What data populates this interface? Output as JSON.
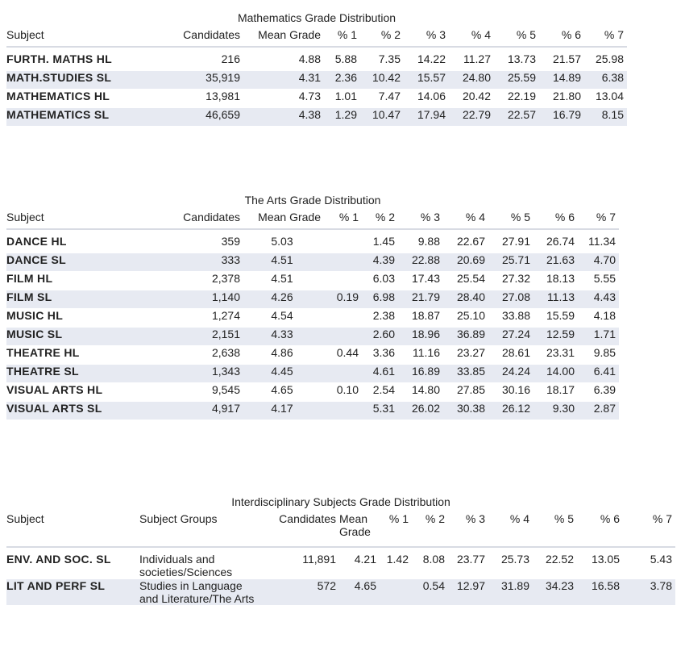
{
  "math": {
    "title": "Mathematics Grade Distribution",
    "headers": [
      "Subject",
      "Candidates",
      "Mean Grade",
      "% 1",
      "% 2",
      "% 3",
      "% 4",
      "% 5",
      "% 6",
      "% 7"
    ],
    "rows": [
      [
        "FURTH. MATHS HL",
        "216",
        "4.88",
        "5.88",
        "7.35",
        "14.22",
        "11.27",
        "13.73",
        "21.57",
        "25.98"
      ],
      [
        "MATH.STUDIES SL",
        "35,919",
        "4.31",
        "2.36",
        "10.42",
        "15.57",
        "24.80",
        "25.59",
        "14.89",
        "6.38"
      ],
      [
        "MATHEMATICS HL",
        "13,981",
        "4.73",
        "1.01",
        "7.47",
        "14.06",
        "20.42",
        "22.19",
        "21.80",
        "13.04"
      ],
      [
        "MATHEMATICS SL",
        "46,659",
        "4.38",
        "1.29",
        "10.47",
        "17.94",
        "22.79",
        "22.57",
        "16.79",
        "8.15"
      ]
    ]
  },
  "arts": {
    "title": "The Arts Grade Distribution",
    "headers": [
      "Subject",
      "Candidates",
      "Mean Grade",
      "% 1",
      "% 2",
      "% 3",
      "% 4",
      "% 5",
      "% 6",
      "% 7"
    ],
    "rows": [
      [
        "DANCE HL",
        "359",
        "5.03",
        "",
        "1.45",
        "9.88",
        "22.67",
        "27.91",
        "26.74",
        "11.34"
      ],
      [
        "DANCE SL",
        "333",
        "4.51",
        "",
        "4.39",
        "22.88",
        "20.69",
        "25.71",
        "21.63",
        "4.70"
      ],
      [
        "FILM HL",
        "2,378",
        "4.51",
        "",
        "6.03",
        "17.43",
        "25.54",
        "27.32",
        "18.13",
        "5.55"
      ],
      [
        "FILM SL",
        "1,140",
        "4.26",
        "0.19",
        "6.98",
        "21.79",
        "28.40",
        "27.08",
        "11.13",
        "4.43"
      ],
      [
        "MUSIC HL",
        "1,274",
        "4.54",
        "",
        "2.38",
        "18.87",
        "25.10",
        "33.88",
        "15.59",
        "4.18"
      ],
      [
        "MUSIC SL",
        "2,151",
        "4.33",
        "",
        "2.60",
        "18.96",
        "36.89",
        "27.24",
        "12.59",
        "1.71"
      ],
      [
        "THEATRE HL",
        "2,638",
        "4.86",
        "0.44",
        "3.36",
        "11.16",
        "23.27",
        "28.61",
        "23.31",
        "9.85"
      ],
      [
        "THEATRE SL",
        "1,343",
        "4.45",
        "",
        "4.61",
        "16.89",
        "33.85",
        "24.24",
        "14.00",
        "6.41"
      ],
      [
        "VISUAL ARTS HL",
        "9,545",
        "4.65",
        "0.10",
        "2.54",
        "14.80",
        "27.85",
        "30.16",
        "18.17",
        "6.39"
      ],
      [
        "VISUAL ARTS SL",
        "4,917",
        "4.17",
        "",
        "5.31",
        "26.02",
        "30.38",
        "26.12",
        "9.30",
        "2.87"
      ]
    ]
  },
  "inter": {
    "title": "Interdisciplinary Subjects Grade Distribution",
    "headers": [
      "Subject",
      "Subject Groups",
      "Candidates",
      "Mean Grade",
      "% 1",
      "% 2",
      "% 3",
      "% 4",
      "% 5",
      "% 6",
      "% 7"
    ],
    "rows": [
      [
        "ENV. AND SOC. SL",
        "Individuals and societies/Sciences",
        "11,891",
        "4.21",
        "1.42",
        "8.08",
        "23.77",
        "25.73",
        "22.52",
        "13.05",
        "5.43"
      ],
      [
        "LIT AND PERF SL",
        "Studies in Language and Literature/The Arts",
        "572",
        "4.65",
        "",
        "0.54",
        "12.97",
        "31.89",
        "34.23",
        "16.58",
        "3.78"
      ]
    ]
  }
}
